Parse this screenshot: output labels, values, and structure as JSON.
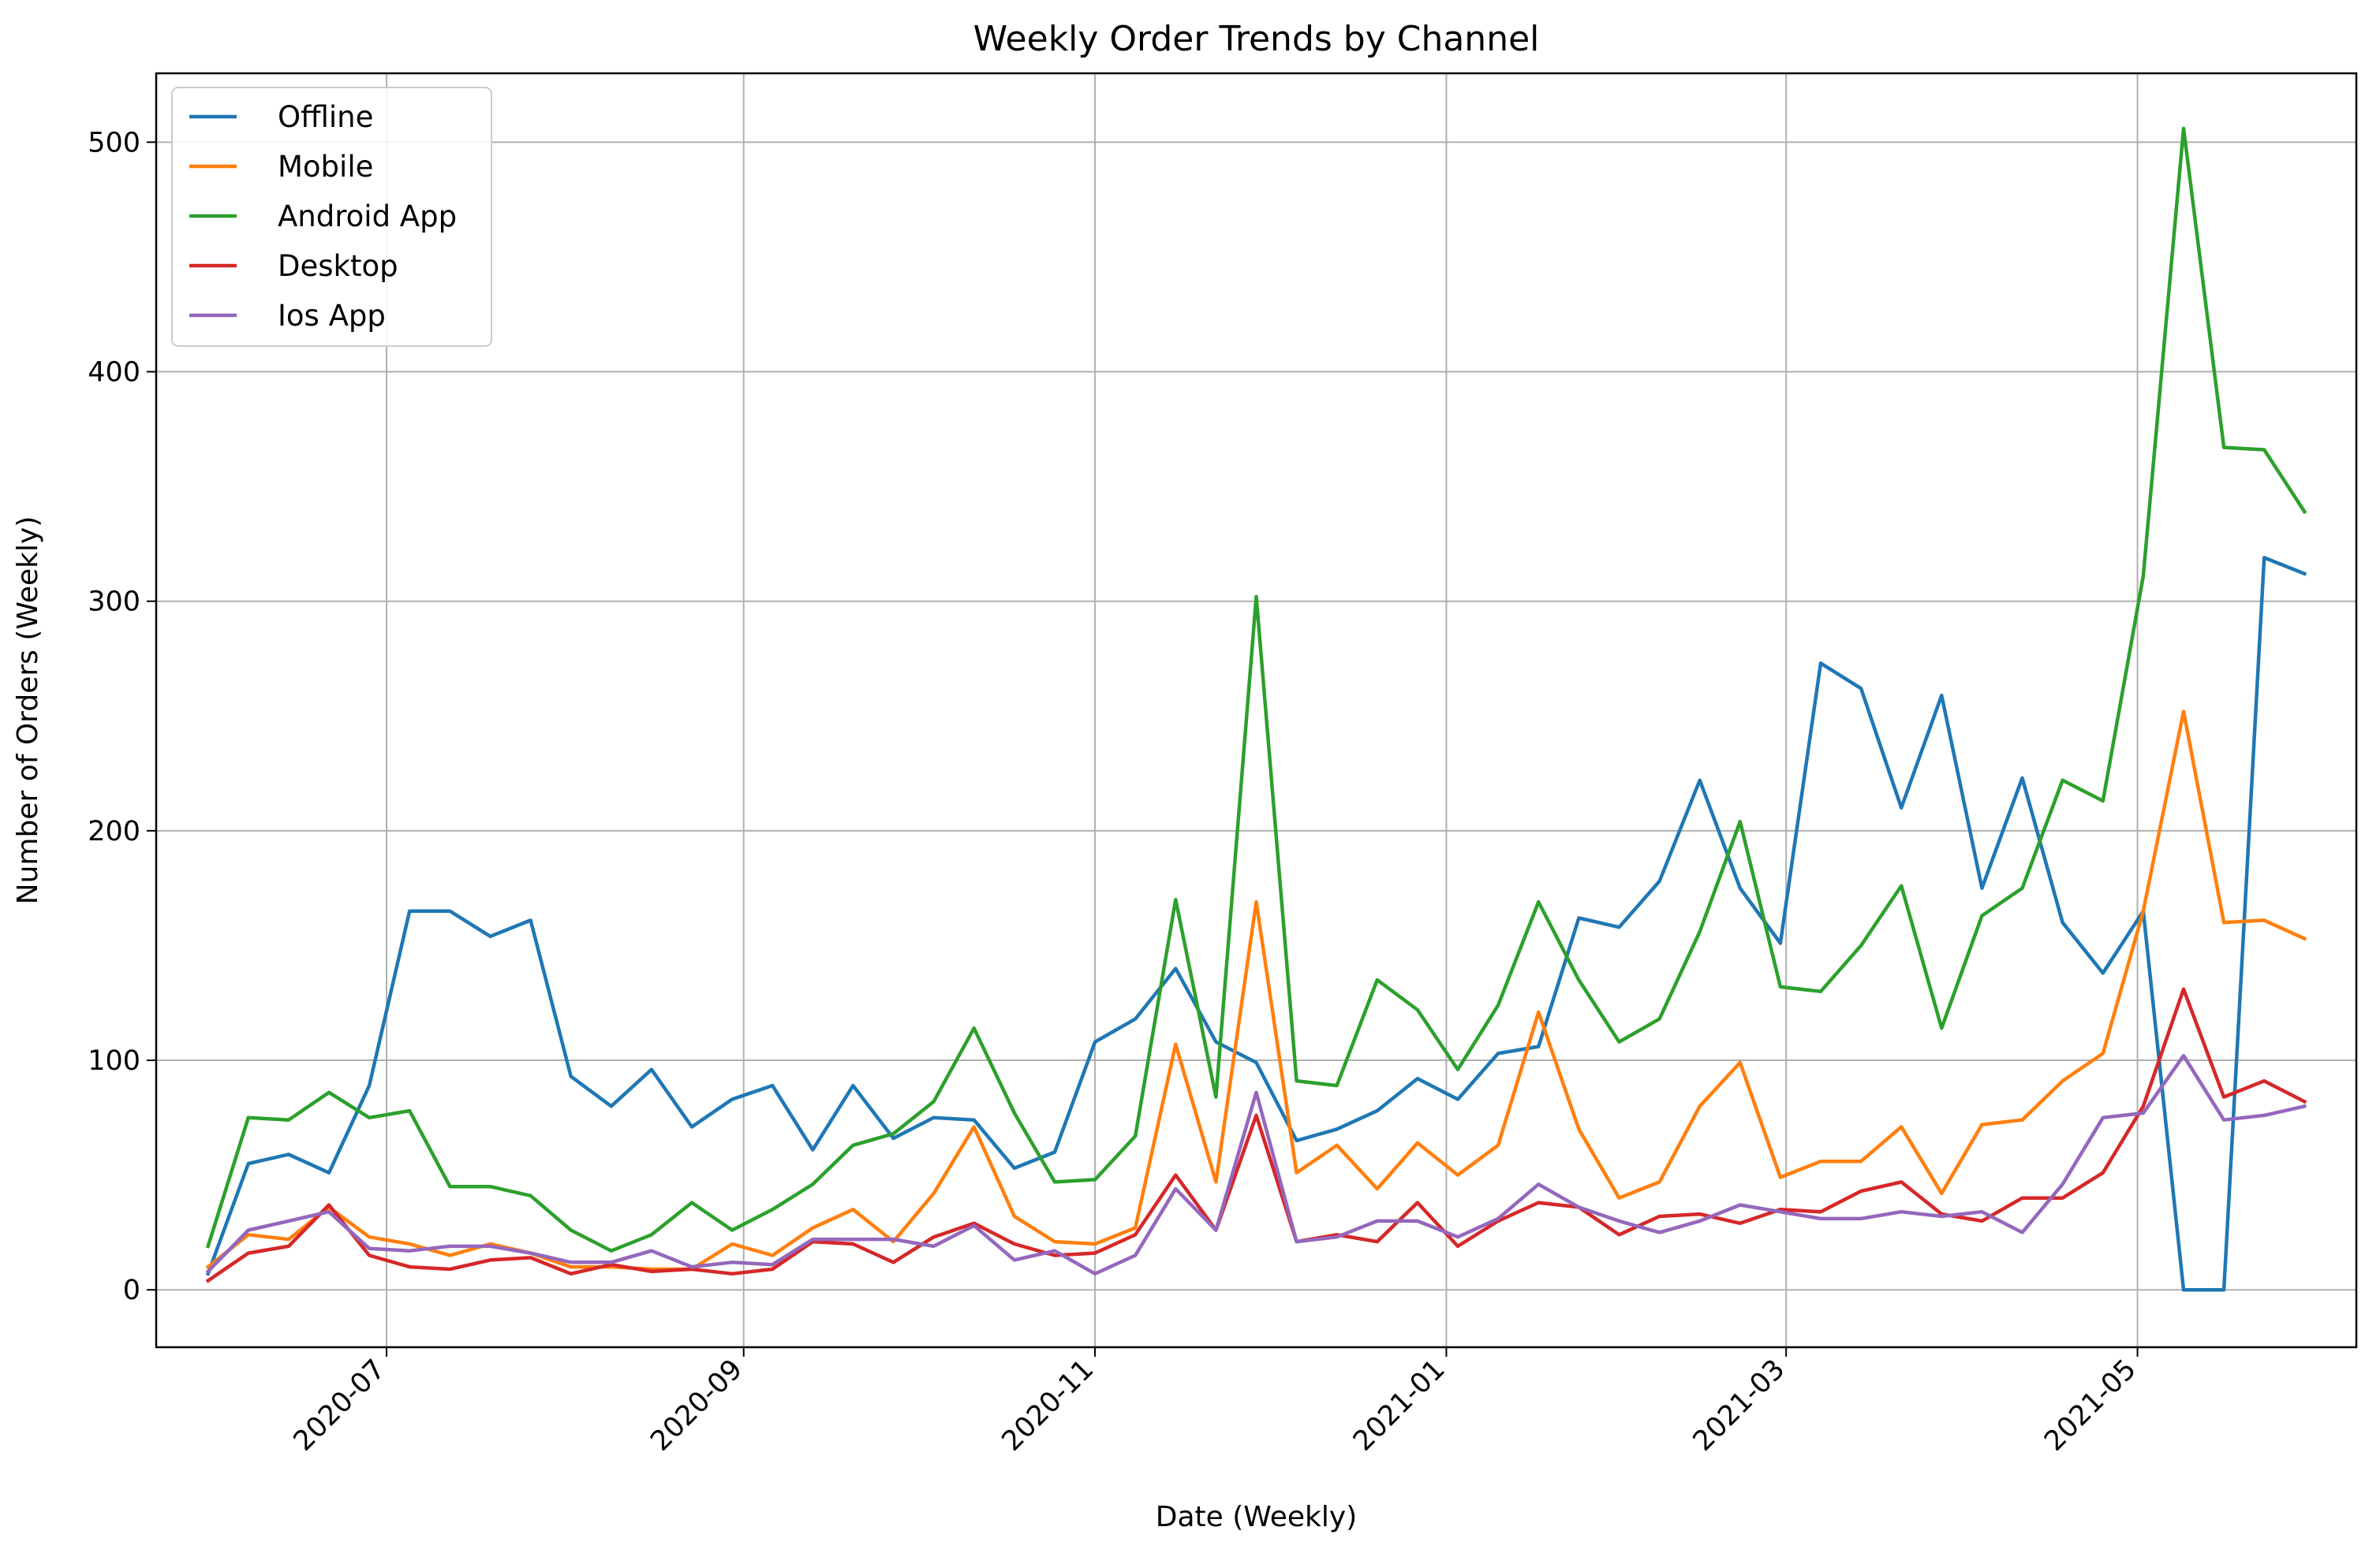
{
  "chart_data": {
    "type": "line",
    "title": "Weekly Order Trends by Channel",
    "xlabel": "Date (Weekly)",
    "ylabel": "Number of Orders (Weekly)",
    "xlim": [
      "2020-05-22",
      "2021-06-08"
    ],
    "ylim": [
      -25,
      530
    ],
    "grid": true,
    "legend_position": "top-left",
    "x_ticks": [
      {
        "date": "2020-07-01",
        "label": "2020-07"
      },
      {
        "date": "2020-09-01",
        "label": "2020-09"
      },
      {
        "date": "2020-11-01",
        "label": "2020-11"
      },
      {
        "date": "2021-01-01",
        "label": "2021-01"
      },
      {
        "date": "2021-03-01",
        "label": "2021-03"
      },
      {
        "date": "2021-05-01",
        "label": "2021-05"
      }
    ],
    "y_ticks": [
      0,
      100,
      200,
      300,
      400,
      500
    ],
    "x": [
      "2020-05-31",
      "2020-06-07",
      "2020-06-14",
      "2020-06-21",
      "2020-06-28",
      "2020-07-05",
      "2020-07-12",
      "2020-07-19",
      "2020-07-26",
      "2020-08-02",
      "2020-08-09",
      "2020-08-16",
      "2020-08-23",
      "2020-08-30",
      "2020-09-06",
      "2020-09-13",
      "2020-09-20",
      "2020-09-27",
      "2020-10-04",
      "2020-10-11",
      "2020-10-18",
      "2020-10-25",
      "2020-11-01",
      "2020-11-08",
      "2020-11-15",
      "2020-11-22",
      "2020-11-29",
      "2020-12-06",
      "2020-12-13",
      "2020-12-20",
      "2020-12-27",
      "2021-01-03",
      "2021-01-10",
      "2021-01-17",
      "2021-01-24",
      "2021-01-31",
      "2021-02-07",
      "2021-02-14",
      "2021-02-21",
      "2021-02-28",
      "2021-03-07",
      "2021-03-14",
      "2021-03-21",
      "2021-03-28",
      "2021-04-04",
      "2021-04-11",
      "2021-04-18",
      "2021-04-25",
      "2021-05-02",
      "2021-05-09",
      "2021-05-16",
      "2021-05-23",
      "2021-05-30"
    ],
    "series": [
      {
        "name": "Offline",
        "color": "#1f77b4",
        "values": [
          7,
          55,
          59,
          51,
          89,
          165,
          165,
          154,
          161,
          93,
          80,
          96,
          71,
          83,
          89,
          61,
          89,
          66,
          75,
          74,
          53,
          60,
          108,
          118,
          140,
          108,
          99,
          65,
          70,
          78,
          92,
          83,
          103,
          106,
          162,
          158,
          178,
          222,
          175,
          151,
          273,
          262,
          210,
          259,
          175,
          223,
          160,
          138,
          165,
          0,
          0,
          319,
          312
        ]
      },
      {
        "name": "Mobile",
        "color": "#ff7f0e",
        "values": [
          10,
          24,
          22,
          36,
          23,
          20,
          15,
          20,
          16,
          10,
          10,
          9,
          9,
          20,
          15,
          27,
          35,
          21,
          42,
          71,
          32,
          21,
          20,
          27,
          107,
          47,
          169,
          51,
          63,
          44,
          64,
          50,
          63,
          121,
          70,
          40,
          47,
          80,
          99,
          49,
          56,
          56,
          71,
          42,
          72,
          74,
          91,
          103,
          165,
          252,
          160,
          161,
          153
        ]
      },
      {
        "name": "Android App",
        "color": "#2ca02c",
        "values": [
          19,
          75,
          74,
          86,
          75,
          78,
          45,
          45,
          41,
          26,
          17,
          24,
          38,
          26,
          35,
          46,
          63,
          68,
          82,
          114,
          77,
          47,
          48,
          67,
          170,
          84,
          302,
          91,
          89,
          135,
          122,
          96,
          124,
          169,
          135,
          108,
          118,
          156,
          204,
          132,
          130,
          150,
          176,
          114,
          163,
          175,
          222,
          213,
          311,
          506,
          367,
          366,
          339
        ]
      },
      {
        "name": "Desktop",
        "color": "#d62728",
        "values": [
          4,
          16,
          19,
          37,
          15,
          10,
          9,
          13,
          14,
          7,
          11,
          8,
          9,
          7,
          9,
          21,
          20,
          12,
          23,
          29,
          20,
          15,
          16,
          24,
          50,
          26,
          76,
          21,
          24,
          21,
          38,
          19,
          30,
          38,
          36,
          24,
          32,
          33,
          29,
          35,
          34,
          43,
          47,
          33,
          30,
          40,
          40,
          51,
          80,
          131,
          84,
          91,
          82
        ]
      },
      {
        "name": "Ios App",
        "color": "#9467bd",
        "values": [
          8,
          26,
          30,
          34,
          18,
          17,
          19,
          19,
          16,
          12,
          12,
          17,
          10,
          12,
          11,
          22,
          22,
          22,
          19,
          28,
          13,
          17,
          7,
          15,
          44,
          26,
          86,
          21,
          23,
          30,
          30,
          23,
          31,
          46,
          36,
          30,
          25,
          30,
          37,
          34,
          31,
          31,
          34,
          32,
          34,
          25,
          46,
          75,
          77,
          102,
          74,
          76,
          80
        ]
      }
    ]
  }
}
